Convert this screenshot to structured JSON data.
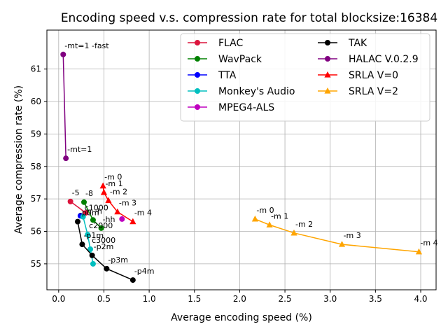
{
  "chart_data": {
    "type": "line",
    "title": "Encoding speed v.s. compression rate for total blocksize:16384",
    "xlabel": "Average encoding speed (%)",
    "ylabel": "Average compression rate (%)",
    "xlim": [
      -0.13,
      4.17
    ],
    "ylim": [
      54.2,
      62.2
    ],
    "xticks": [
      "0.0",
      "0.5",
      "1.0",
      "1.5",
      "2.0",
      "2.5",
      "3.0",
      "3.5",
      "4.0"
    ],
    "yticks": [
      "55",
      "56",
      "57",
      "58",
      "59",
      "60",
      "61"
    ],
    "grid": true,
    "legend_position": "top-right",
    "series": [
      {
        "name": "FLAC",
        "color": "#dc143c",
        "marker": "circle",
        "x": [
          0.13,
          0.3
        ],
        "y": [
          56.92,
          56.57
        ],
        "labels": [
          "-5",
          ""
        ]
      },
      {
        "name": "WavPack",
        "color": "#008000",
        "marker": "circle",
        "x": [
          0.28,
          0.38,
          0.47
        ],
        "y": [
          56.9,
          56.35,
          56.1
        ],
        "labels": [
          "-8",
          "-h",
          "-hh"
        ]
      },
      {
        "name": "TTA",
        "color": "#0000ff",
        "marker": "circle",
        "x": [
          0.24
        ],
        "y": [
          56.48
        ],
        "labels": [
          ""
        ]
      },
      {
        "name": "Monkey's Audio",
        "color": "#00bfbf",
        "marker": "circle",
        "x": [
          0.27,
          0.32,
          0.35,
          0.38
        ],
        "y": [
          56.45,
          55.9,
          55.45,
          55.0
        ],
        "labels": [
          "c1000",
          "c2000",
          "c3000",
          ""
        ]
      },
      {
        "name": "MPEG4-ALS",
        "color": "#bf00bf",
        "marker": "circle",
        "x": [
          0.7
        ],
        "y": [
          56.38
        ],
        "labels": [
          ""
        ]
      },
      {
        "name": "TAK",
        "color": "#000000",
        "marker": "circle",
        "x": [
          0.21,
          0.26,
          0.37,
          0.53,
          0.82
        ],
        "y": [
          56.3,
          55.6,
          55.26,
          54.85,
          54.5
        ],
        "labels": [
          "-p0m",
          "-p1m",
          "-p2m",
          "-p3m",
          "-p4m"
        ]
      },
      {
        "name": "HALAC V.0.2.9",
        "color": "#800080",
        "marker": "circle",
        "x": [
          0.05,
          0.08
        ],
        "y": [
          61.45,
          58.25
        ],
        "labels": [
          "-mt=1 -fast",
          "-mt=1"
        ]
      },
      {
        "name": "SRLA V=0",
        "color": "#ff0000",
        "marker": "triangle",
        "x": [
          0.49,
          0.5,
          0.55,
          0.65,
          0.82
        ],
        "y": [
          57.4,
          57.2,
          56.95,
          56.6,
          56.3
        ],
        "labels": [
          "-m 0",
          "-m 1",
          "-m 2",
          "-m 3",
          "-m 4"
        ]
      },
      {
        "name": "SRLA V=2",
        "color": "#ffa500",
        "marker": "triangle",
        "x": [
          2.17,
          2.33,
          2.6,
          3.13,
          3.98
        ],
        "y": [
          56.38,
          56.2,
          55.95,
          55.6,
          55.37
        ],
        "labels": [
          "-m 0",
          "-m 1",
          "-m 2",
          "-m 3",
          "-m 4"
        ]
      }
    ]
  }
}
